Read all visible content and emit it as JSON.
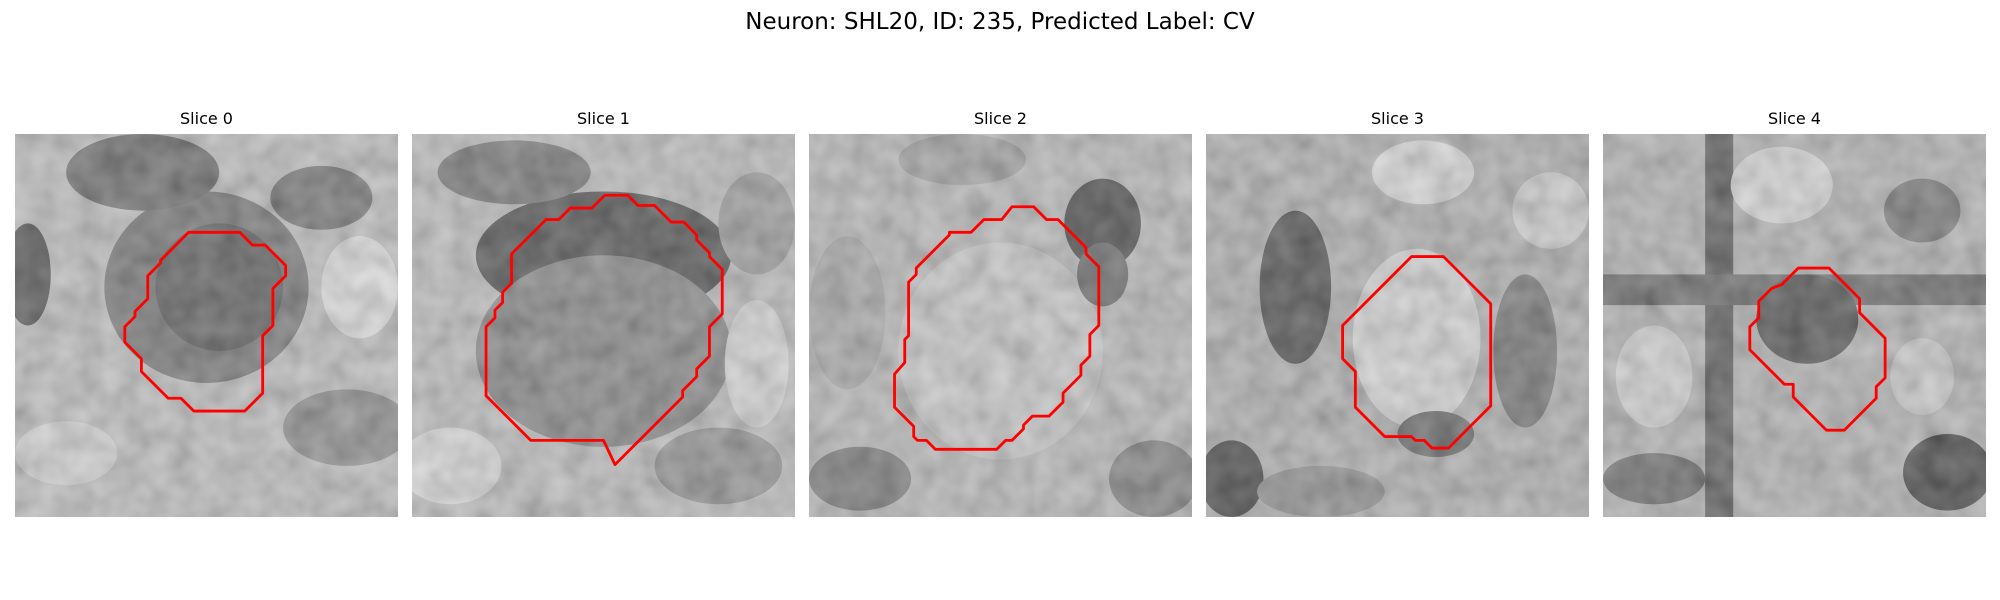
{
  "figure": {
    "title": "Neuron: SHL20, ID: 235, Predicted Label: CV",
    "contour_color": "#ff0000",
    "colormap": "gray"
  },
  "panels": [
    {
      "title": "Slice 0"
    },
    {
      "title": "Slice 1"
    },
    {
      "title": "Slice 2"
    },
    {
      "title": "Slice 3"
    },
    {
      "title": "Slice 4"
    }
  ]
}
